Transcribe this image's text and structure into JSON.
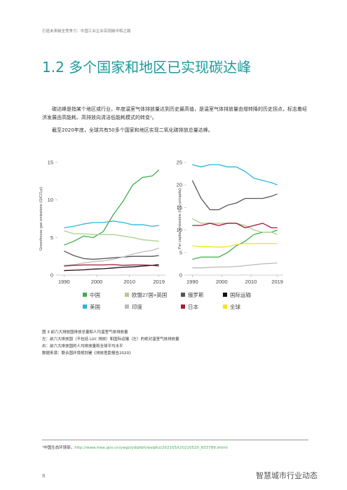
{
  "header": "打造未来碳全竞争力：中国工业企业实现碳中和之路",
  "title": "1.2 多个国家和地区已实现碳达峰",
  "paragraphs": [
    "碳达峰是指某个地区或行业，年度温室气体排放量达到历史最高值，是温室气体排放量由增转降的历史拐点，标志着经济发展由高能耗、高排放向清洁低能耗模式的转变¹。",
    "截至2020年底，全球共有50多个国家和地区实现二氧化碳排放总量达峰。"
  ],
  "chart_data": [
    {
      "type": "line",
      "ylabel": "Greenhouse gas emissions (GtCO₂e)",
      "x": [
        1990,
        1993,
        1996,
        1999,
        2002,
        2005,
        2008,
        2011,
        2014,
        2017,
        2019
      ],
      "xlim": [
        1988,
        2021
      ],
      "xticks": [
        1990,
        2000,
        2010,
        2019
      ],
      "ylim": [
        0,
        15
      ],
      "yticks": [
        0,
        5,
        10,
        15
      ],
      "series": [
        {
          "name": "中国",
          "color": "#3fae49",
          "values": [
            4.0,
            4.5,
            5.2,
            5.0,
            5.8,
            8.0,
            9.8,
            12.0,
            13.0,
            13.2,
            14.0
          ]
        },
        {
          "name": "欧盟27国+英国",
          "color": "#a8d08d",
          "values": [
            5.9,
            5.5,
            5.5,
            5.4,
            5.4,
            5.4,
            5.2,
            5.0,
            4.7,
            4.6,
            4.5
          ]
        },
        {
          "name": "俄罗斯",
          "color": "#555555",
          "values": [
            3.2,
            2.6,
            2.2,
            2.1,
            2.2,
            2.3,
            2.4,
            2.5,
            2.5,
            2.5,
            2.6
          ]
        },
        {
          "name": "国际运输",
          "color": "#111111",
          "values": [
            0.6,
            0.65,
            0.7,
            0.8,
            0.85,
            0.95,
            1.05,
            1.1,
            1.2,
            1.3,
            1.4
          ]
        },
        {
          "name": "美国",
          "color": "#29b6e0",
          "values": [
            6.3,
            6.5,
            6.8,
            7.0,
            7.0,
            7.2,
            7.0,
            6.7,
            6.7,
            6.5,
            6.6
          ]
        },
        {
          "name": "印度",
          "color": "#bbbbbb",
          "values": [
            1.3,
            1.4,
            1.6,
            1.8,
            1.9,
            2.1,
            2.4,
            2.8,
            3.1,
            3.3,
            3.6
          ]
        },
        {
          "name": "日本",
          "color": "#a31a3a",
          "values": [
            1.2,
            1.3,
            1.35,
            1.35,
            1.35,
            1.4,
            1.3,
            1.35,
            1.35,
            1.3,
            1.2
          ]
        }
      ]
    },
    {
      "type": "line",
      "ylabel": "Per capita emissions (tCO₂e/capita)",
      "x": [
        1990,
        1993,
        1996,
        1999,
        2002,
        2005,
        2008,
        2011,
        2014,
        2017,
        2019
      ],
      "xlim": [
        1988,
        2021
      ],
      "xticks": [
        1990,
        2000,
        2010,
        2019
      ],
      "ylim": [
        0,
        25
      ],
      "yticks": [
        0,
        5,
        10,
        15,
        20,
        25
      ],
      "series": [
        {
          "name": "中国",
          "color": "#3fae49",
          "values": [
            3.5,
            4,
            4,
            4,
            5,
            6.5,
            7.5,
            9,
            9.5,
            9.5,
            10
          ]
        },
        {
          "name": "欧盟27国+英国",
          "color": "#a8d08d",
          "values": [
            12.5,
            11.5,
            11.5,
            11.5,
            11.5,
            11.5,
            11,
            10,
            9.5,
            9.5,
            9
          ]
        },
        {
          "name": "俄罗斯",
          "color": "#555555",
          "values": [
            21,
            17,
            14.5,
            14.5,
            15.5,
            16,
            17,
            17,
            17,
            17.5,
            18
          ]
        },
        {
          "name": "美国",
          "color": "#29b6e0",
          "values": [
            24.5,
            24,
            24.5,
            24.5,
            24,
            24,
            23,
            21.5,
            21,
            20.5,
            20
          ]
        },
        {
          "name": "印度",
          "color": "#bbbbbb",
          "values": [
            1.6,
            1.6,
            1.7,
            1.8,
            1.8,
            1.9,
            2.1,
            2.3,
            2.5,
            2.6,
            2.7
          ]
        },
        {
          "name": "日本",
          "color": "#a31a3a",
          "values": [
            11,
            11,
            11.5,
            11,
            11.5,
            11.5,
            10.5,
            11,
            11.5,
            10.5,
            10.5
          ]
        },
        {
          "name": "全球",
          "color": "#f2e51a",
          "values": [
            6.5,
            6.3,
            6.3,
            6.2,
            6.3,
            6.8,
            7,
            7,
            7,
            7,
            7
          ]
        }
      ]
    }
  ],
  "caption": [
    "图 3 前六大排放国排放总量和人均温室气体排放量",
    "左：前六大排放国（不包括 LUC 排放）和国际运输（左）的绝对温室气体排放量",
    "右：前六大排放国的人均排放量和全球平均水平",
    "数据来源：联合国环境规划署《排放差距报告2020》"
  ],
  "footnote": {
    "text": "¹中国生态环境部，",
    "url": "http://www.mee.gov.cn/ywgz/ydqhbh/wsqtkz/202105/t20210520_833789.shtml"
  },
  "page_number": "8",
  "watermark": "智慧城市行业动态"
}
